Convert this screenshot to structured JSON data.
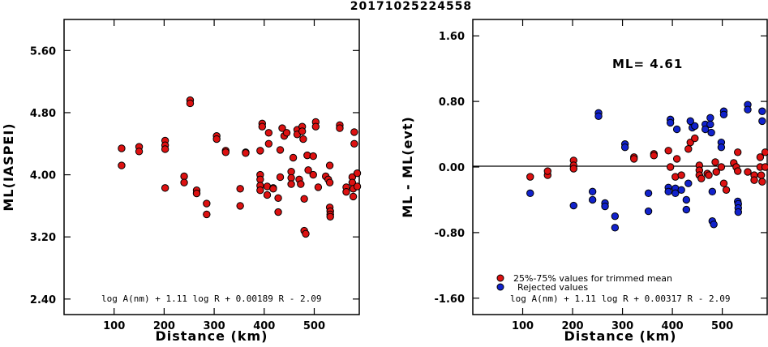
{
  "title": "20171025224558",
  "chart_data": [
    {
      "type": "scatter",
      "xlabel": "Distance (km)",
      "ylabel": "ML(IASPEI)",
      "xlim": [
        0,
        590
      ],
      "ylim": [
        2.2,
        6.0
      ],
      "xticks": [
        100,
        200,
        300,
        400,
        500
      ],
      "yticks": [
        2.4,
        3.2,
        4.0,
        4.8,
        5.6
      ],
      "ytick_labels": [
        "2.40",
        "3.20",
        "4.00",
        "4.80",
        "5.60"
      ],
      "annotation": "log A(nm) + 1.11 log R + 0.00189 R - 2.09",
      "color": "#dd1111",
      "points": [
        [
          115,
          4.34
        ],
        [
          115,
          4.12
        ],
        [
          150,
          4.36
        ],
        [
          150,
          4.3
        ],
        [
          202,
          4.44
        ],
        [
          202,
          4.38
        ],
        [
          202,
          4.33
        ],
        [
          202,
          3.83
        ],
        [
          240,
          3.98
        ],
        [
          240,
          3.9
        ],
        [
          252,
          4.96
        ],
        [
          252,
          4.92
        ],
        [
          265,
          3.8
        ],
        [
          265,
          3.76
        ],
        [
          285,
          3.63
        ],
        [
          285,
          3.49
        ],
        [
          305,
          4.5
        ],
        [
          305,
          4.46
        ],
        [
          323,
          4.31
        ],
        [
          323,
          4.29
        ],
        [
          352,
          3.82
        ],
        [
          352,
          3.6
        ],
        [
          363,
          4.29
        ],
        [
          363,
          4.28
        ],
        [
          392,
          4.31
        ],
        [
          392,
          4.0
        ],
        [
          392,
          3.94
        ],
        [
          392,
          3.86
        ],
        [
          392,
          3.8
        ],
        [
          396,
          4.66
        ],
        [
          396,
          4.62
        ],
        [
          406,
          3.85
        ],
        [
          406,
          3.74
        ],
        [
          409,
          4.54
        ],
        [
          409,
          4.4
        ],
        [
          418,
          3.83
        ],
        [
          418,
          3.82
        ],
        [
          428,
          3.7
        ],
        [
          428,
          3.52
        ],
        [
          432,
          3.97
        ],
        [
          432,
          4.32
        ],
        [
          436,
          4.6
        ],
        [
          440,
          4.5
        ],
        [
          445,
          4.54
        ],
        [
          454,
          4.04
        ],
        [
          454,
          3.96
        ],
        [
          454,
          3.88
        ],
        [
          458,
          4.22
        ],
        [
          466,
          4.58
        ],
        [
          466,
          4.52
        ],
        [
          470,
          3.94
        ],
        [
          473,
          3.88
        ],
        [
          476,
          4.62
        ],
        [
          476,
          4.56
        ],
        [
          478,
          4.46
        ],
        [
          480,
          3.69
        ],
        [
          480,
          3.28
        ],
        [
          483,
          3.24
        ],
        [
          486,
          4.25
        ],
        [
          488,
          4.06
        ],
        [
          498,
          4.24
        ],
        [
          498,
          4.0
        ],
        [
          503,
          4.68
        ],
        [
          503,
          4.62
        ],
        [
          508,
          3.84
        ],
        [
          523,
          3.98
        ],
        [
          528,
          3.94
        ],
        [
          531,
          4.12
        ],
        [
          531,
          3.9
        ],
        [
          531,
          3.58
        ],
        [
          532,
          3.53
        ],
        [
          532,
          3.49
        ],
        [
          532,
          3.46
        ],
        [
          551,
          4.64
        ],
        [
          551,
          4.6
        ],
        [
          564,
          3.84
        ],
        [
          564,
          3.78
        ],
        [
          576,
          3.97
        ],
        [
          576,
          3.9
        ],
        [
          578,
          3.82
        ],
        [
          578,
          3.72
        ],
        [
          580,
          4.55
        ],
        [
          580,
          4.4
        ],
        [
          586,
          4.02
        ],
        [
          586,
          3.85
        ]
      ]
    },
    {
      "type": "scatter",
      "xlabel": "Distance (km)",
      "ylabel": "ML - ML(evt)",
      "xlim": [
        0,
        590
      ],
      "ylim": [
        -1.8,
        1.8
      ],
      "xticks": [
        100,
        200,
        300,
        400,
        500
      ],
      "yticks": [
        -1.6,
        -0.8,
        0.0,
        0.8,
        1.6
      ],
      "ytick_labels": [
        "-1.60",
        "-0.80",
        "0.00",
        "0.80",
        "1.60"
      ],
      "ml_label": "ML= 4.61",
      "annotation": "log A(nm) + 1.11 log R + 0.00317 R - 2.09",
      "legend": [
        {
          "label": "25%-75% values for trimmed mean",
          "color": "#dd1111"
        },
        {
          "label": "Rejected values",
          "color": "#1122cc"
        }
      ],
      "red_points": [
        [
          115,
          -0.12
        ],
        [
          150,
          -0.1
        ],
        [
          150,
          -0.05
        ],
        [
          202,
          0.08
        ],
        [
          202,
          0.02
        ],
        [
          202,
          -0.02
        ],
        [
          323,
          0.12
        ],
        [
          323,
          0.1
        ],
        [
          363,
          0.16
        ],
        [
          363,
          0.14
        ],
        [
          392,
          0.2
        ],
        [
          396,
          0.0
        ],
        [
          406,
          -0.12
        ],
        [
          409,
          0.1
        ],
        [
          418,
          -0.1
        ],
        [
          432,
          0.22
        ],
        [
          436,
          0.3
        ],
        [
          445,
          0.35
        ],
        [
          454,
          0.02
        ],
        [
          454,
          -0.04
        ],
        [
          454,
          -0.1
        ],
        [
          458,
          -0.14
        ],
        [
          470,
          -0.08
        ],
        [
          473,
          -0.1
        ],
        [
          486,
          0.06
        ],
        [
          488,
          -0.06
        ],
        [
          498,
          0.0
        ],
        [
          503,
          -0.2
        ],
        [
          508,
          -0.28
        ],
        [
          523,
          0.05
        ],
        [
          528,
          0.0
        ],
        [
          531,
          0.18
        ],
        [
          531,
          -0.05
        ],
        [
          551,
          -0.06
        ],
        [
          564,
          -0.1
        ],
        [
          564,
          -0.16
        ],
        [
          576,
          0.12
        ],
        [
          576,
          0.0
        ],
        [
          578,
          -0.1
        ],
        [
          580,
          -0.18
        ],
        [
          586,
          0.18
        ],
        [
          586,
          0.0
        ]
      ],
      "blue_points": [
        [
          115,
          -0.32
        ],
        [
          202,
          -0.47
        ],
        [
          240,
          -0.3
        ],
        [
          240,
          -0.4
        ],
        [
          252,
          0.66
        ],
        [
          252,
          0.62
        ],
        [
          265,
          -0.44
        ],
        [
          265,
          -0.48
        ],
        [
          285,
          -0.6
        ],
        [
          285,
          -0.74
        ],
        [
          305,
          0.28
        ],
        [
          305,
          0.24
        ],
        [
          352,
          -0.32
        ],
        [
          352,
          -0.54
        ],
        [
          392,
          -0.25
        ],
        [
          392,
          -0.3
        ],
        [
          396,
          0.58
        ],
        [
          396,
          0.54
        ],
        [
          406,
          -0.26
        ],
        [
          406,
          -0.32
        ],
        [
          409,
          0.46
        ],
        [
          418,
          -0.28
        ],
        [
          428,
          -0.4
        ],
        [
          428,
          -0.52
        ],
        [
          432,
          -0.2
        ],
        [
          436,
          0.56
        ],
        [
          440,
          0.48
        ],
        [
          445,
          0.5
        ],
        [
          466,
          0.52
        ],
        [
          466,
          0.46
        ],
        [
          476,
          0.6
        ],
        [
          476,
          0.52
        ],
        [
          478,
          0.42
        ],
        [
          480,
          -0.3
        ],
        [
          480,
          -0.66
        ],
        [
          483,
          -0.7
        ],
        [
          498,
          0.3
        ],
        [
          498,
          0.24
        ],
        [
          503,
          0.68
        ],
        [
          503,
          0.64
        ],
        [
          531,
          -0.42
        ],
        [
          532,
          -0.45
        ],
        [
          532,
          -0.5
        ],
        [
          532,
          -0.55
        ],
        [
          551,
          0.76
        ],
        [
          551,
          0.7
        ],
        [
          580,
          0.68
        ],
        [
          580,
          0.56
        ]
      ]
    }
  ]
}
